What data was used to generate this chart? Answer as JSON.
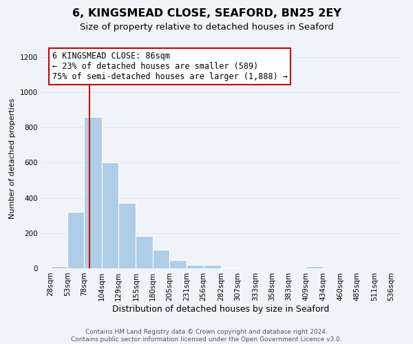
{
  "title": "6, KINGSMEAD CLOSE, SEAFORD, BN25 2EY",
  "subtitle": "Size of property relative to detached houses in Seaford",
  "xlabel": "Distribution of detached houses by size in Seaford",
  "ylabel": "Number of detached properties",
  "bar_left_edges": [
    28,
    53,
    78,
    104,
    129,
    155,
    180,
    205,
    231,
    256,
    282,
    307,
    333,
    358,
    383,
    409,
    434,
    460,
    485,
    511
  ],
  "bar_heights": [
    10,
    320,
    860,
    600,
    370,
    185,
    105,
    45,
    20,
    20,
    5,
    0,
    0,
    0,
    0,
    10,
    0,
    0,
    0,
    0
  ],
  "bar_widths": [
    25,
    25,
    26,
    25,
    26,
    25,
    25,
    26,
    25,
    26,
    25,
    26,
    25,
    25,
    26,
    25,
    26,
    25,
    26,
    25
  ],
  "bar_color": "#aecde8",
  "bar_edge_color": "#ffffff",
  "bar_linewidth": 0.8,
  "vline_x": 86,
  "vline_color": "#cc0000",
  "vline_linewidth": 1.5,
  "annotation_line1": "6 KINGSMEAD CLOSE: 86sqm",
  "annotation_line2": "← 23% of detached houses are smaller (589)",
  "annotation_line3": "75% of semi-detached houses are larger (1,888) →",
  "annotation_box_color": "#ffffff",
  "annotation_box_edge_color": "#cc0000",
  "ylim": [
    0,
    1250
  ],
  "yticks": [
    0,
    200,
    400,
    600,
    800,
    1000,
    1200
  ],
  "xtick_labels": [
    "28sqm",
    "53sqm",
    "78sqm",
    "104sqm",
    "129sqm",
    "155sqm",
    "180sqm",
    "205sqm",
    "231sqm",
    "256sqm",
    "282sqm",
    "307sqm",
    "333sqm",
    "358sqm",
    "383sqm",
    "409sqm",
    "434sqm",
    "460sqm",
    "485sqm",
    "511sqm",
    "536sqm"
  ],
  "xtick_positions": [
    28,
    53,
    78,
    104,
    129,
    155,
    180,
    205,
    231,
    256,
    282,
    307,
    333,
    358,
    383,
    409,
    434,
    460,
    485,
    511,
    536
  ],
  "grid_color": "#dce8f0",
  "background_color": "#f0f4f8",
  "footer_text": "Contains HM Land Registry data © Crown copyright and database right 2024.\nContains public sector information licensed under the Open Government Licence v3.0.",
  "title_fontsize": 11.5,
  "subtitle_fontsize": 9.5,
  "xlabel_fontsize": 9,
  "ylabel_fontsize": 8,
  "tick_fontsize": 7.5,
  "annotation_fontsize": 8.5,
  "footer_fontsize": 6.5
}
